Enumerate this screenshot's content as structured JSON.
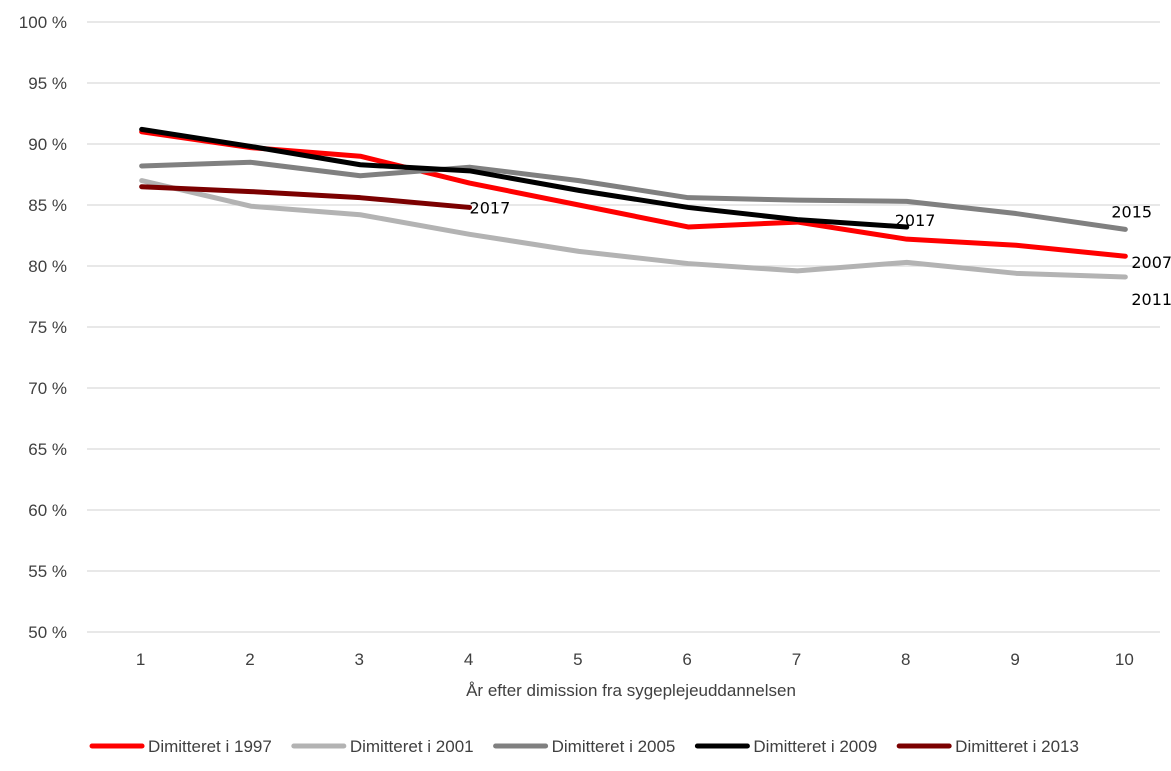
{
  "chart_data": {
    "type": "line",
    "xlabel": "År efter dimission fra sygeplejeuddannelsen",
    "ylabel": "",
    "x": [
      1,
      2,
      3,
      4,
      5,
      6,
      7,
      8,
      9,
      10
    ],
    "ylim": [
      50,
      100
    ],
    "yticks": [
      "50 %",
      "55 %",
      "60 %",
      "65 %",
      "70 %",
      "75 %",
      "80 %",
      "85 %",
      "90 %",
      "95 %",
      "100 %"
    ],
    "xticks": [
      "1",
      "2",
      "3",
      "4",
      "5",
      "6",
      "7",
      "8",
      "9",
      "10"
    ],
    "grid": "horizontal",
    "legend_position": "bottom",
    "series": [
      {
        "name": "Dimitteret i 1997",
        "color": "#ff0000",
        "values": [
          91.0,
          89.7,
          89.0,
          86.8,
          85.0,
          83.2,
          83.6,
          82.2,
          81.7,
          80.8
        ],
        "end_label": "2007"
      },
      {
        "name": "Dimitteret i 2001",
        "color": "#b3b3b3",
        "values": [
          87.0,
          84.9,
          84.2,
          82.6,
          81.2,
          80.2,
          79.6,
          80.3,
          79.4,
          79.1
        ],
        "end_label": "2011"
      },
      {
        "name": "Dimitteret i 2005",
        "color": "#808080",
        "values": [
          88.2,
          88.5,
          87.4,
          88.1,
          87.0,
          85.6,
          85.4,
          85.3,
          84.3,
          83.0
        ],
        "end_label": "2015"
      },
      {
        "name": "Dimitteret i 2009",
        "color": "#000000",
        "values": [
          91.2,
          89.8,
          88.3,
          87.8,
          86.2,
          84.8,
          83.8,
          83.2,
          null,
          null
        ],
        "end_label": "2017"
      },
      {
        "name": "Dimitteret i 2013",
        "color": "#7b0000",
        "values": [
          86.5,
          86.1,
          85.6,
          84.8,
          null,
          null,
          null,
          null,
          null,
          null
        ],
        "end_label": "2017"
      }
    ]
  }
}
